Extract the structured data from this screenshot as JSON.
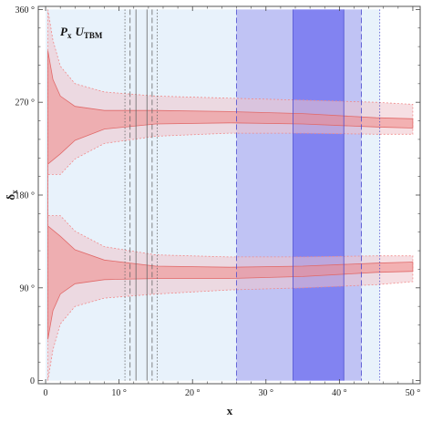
{
  "chart_data": {
    "type": "area",
    "label": {
      "main": "P",
      "main_sub": "x",
      "second": "U",
      "second_sub": "TBM"
    },
    "xlabel": "x",
    "ylabel_main": "δ",
    "ylabel_sub": "x",
    "xlim": [
      -1,
      51
    ],
    "ylim": [
      -3,
      363
    ],
    "x_ticks": [
      {
        "value": 0,
        "label": "0"
      },
      {
        "value": 10,
        "label": "10 °"
      },
      {
        "value": 20,
        "label": "20 °"
      },
      {
        "value": 30,
        "label": "30 °"
      },
      {
        "value": 40,
        "label": "40 °"
      },
      {
        "value": 50,
        "label": "50 °"
      }
    ],
    "y_ticks": [
      {
        "value": 0,
        "label": "0"
      },
      {
        "value": 90,
        "label": "90 °"
      },
      {
        "value": 180,
        "label": "180 °"
      },
      {
        "value": 270,
        "label": "270 °"
      },
      {
        "value": 360,
        "label": "360 °"
      }
    ],
    "colors": {
      "band_light": "#e6f1fb",
      "band_mid": "#b3b3f2",
      "band_dark": "#6d6df0",
      "region_red": "#f08a8a",
      "region_red_light": "#eec5cc",
      "vline": "#666666"
    },
    "vertical_bands": [
      {
        "name": "light",
        "x": [
          0,
          45.5
        ]
      },
      {
        "name": "mid",
        "x": [
          26,
          43
        ]
      },
      {
        "name": "dark",
        "x": [
          33.7,
          40.6
        ]
      }
    ],
    "vertical_lines": [
      {
        "x": 10.8,
        "style": "dotted"
      },
      {
        "x": 11.5,
        "style": "dashed"
      },
      {
        "x": 12.3,
        "style": "solid"
      },
      {
        "x": 13.8,
        "style": "solid"
      },
      {
        "x": 14.5,
        "style": "dashed"
      },
      {
        "x": 15.2,
        "style": "dotted"
      },
      {
        "x": 26,
        "style": "dashed"
      },
      {
        "x": 33.7,
        "style": "solid"
      },
      {
        "x": 40.6,
        "style": "solid"
      },
      {
        "x": 43,
        "style": "dashed"
      },
      {
        "x": 45.5,
        "style": "dotted"
      }
    ],
    "regions": {
      "light_upper_outer": [
        [
          0.3,
          360
        ],
        [
          1.0,
          330
        ],
        [
          2.0,
          305
        ],
        [
          4.0,
          288
        ],
        [
          8.0,
          280
        ],
        [
          15.0,
          276
        ],
        [
          25.0,
          274
        ],
        [
          35.0,
          272
        ],
        [
          45.0,
          270
        ],
        [
          50.0,
          268
        ]
      ],
      "light_upper_inner": [
        [
          0.3,
          200
        ],
        [
          2.0,
          200
        ],
        [
          4.0,
          215
        ],
        [
          8.0,
          230
        ],
        [
          15.0,
          237
        ],
        [
          25.0,
          240
        ],
        [
          35.0,
          240
        ],
        [
          45.0,
          239
        ],
        [
          50.0,
          239
        ]
      ],
      "light_lower_inner": [
        [
          0.3,
          160
        ],
        [
          2.0,
          160
        ],
        [
          4.0,
          145
        ],
        [
          8.0,
          130
        ],
        [
          15.0,
          122
        ],
        [
          25.0,
          120
        ],
        [
          35.0,
          120
        ],
        [
          45.0,
          121
        ],
        [
          50.0,
          121
        ]
      ],
      "light_lower_outer": [
        [
          0.3,
          0
        ],
        [
          1.0,
          30
        ],
        [
          2.0,
          55
        ],
        [
          4.0,
          72
        ],
        [
          8.0,
          80
        ],
        [
          15.0,
          84
        ],
        [
          25.0,
          88
        ],
        [
          35.0,
          90
        ],
        [
          45.0,
          93
        ],
        [
          50.0,
          96
        ]
      ],
      "red_upper_outer": [
        [
          0.3,
          320
        ],
        [
          1.0,
          292
        ],
        [
          2.0,
          276
        ],
        [
          4.0,
          266
        ],
        [
          8.0,
          262
        ],
        [
          15.0,
          262
        ],
        [
          25.0,
          261
        ],
        [
          35.0,
          259
        ],
        [
          45.0,
          255
        ],
        [
          50.0,
          254
        ]
      ],
      "red_upper_inner": [
        [
          0.3,
          210
        ],
        [
          2.0,
          220
        ],
        [
          4.0,
          233
        ],
        [
          8.0,
          244
        ],
        [
          15.0,
          249
        ],
        [
          25.0,
          250
        ],
        [
          35.0,
          249
        ],
        [
          45.0,
          246
        ],
        [
          50.0,
          245
        ]
      ],
      "red_lower_inner": [
        [
          0.3,
          150
        ],
        [
          2.0,
          140
        ],
        [
          4.0,
          127
        ],
        [
          8.0,
          117
        ],
        [
          15.0,
          111
        ],
        [
          25.0,
          110
        ],
        [
          35.0,
          111
        ],
        [
          45.0,
          114
        ],
        [
          50.0,
          115
        ]
      ],
      "red_lower_outer": [
        [
          0.3,
          40
        ],
        [
          1.0,
          68
        ],
        [
          2.0,
          84
        ],
        [
          4.0,
          94
        ],
        [
          8.0,
          98
        ],
        [
          15.0,
          99
        ],
        [
          25.0,
          99
        ],
        [
          35.0,
          101
        ],
        [
          45.0,
          105
        ],
        [
          50.0,
          106
        ]
      ]
    }
  }
}
